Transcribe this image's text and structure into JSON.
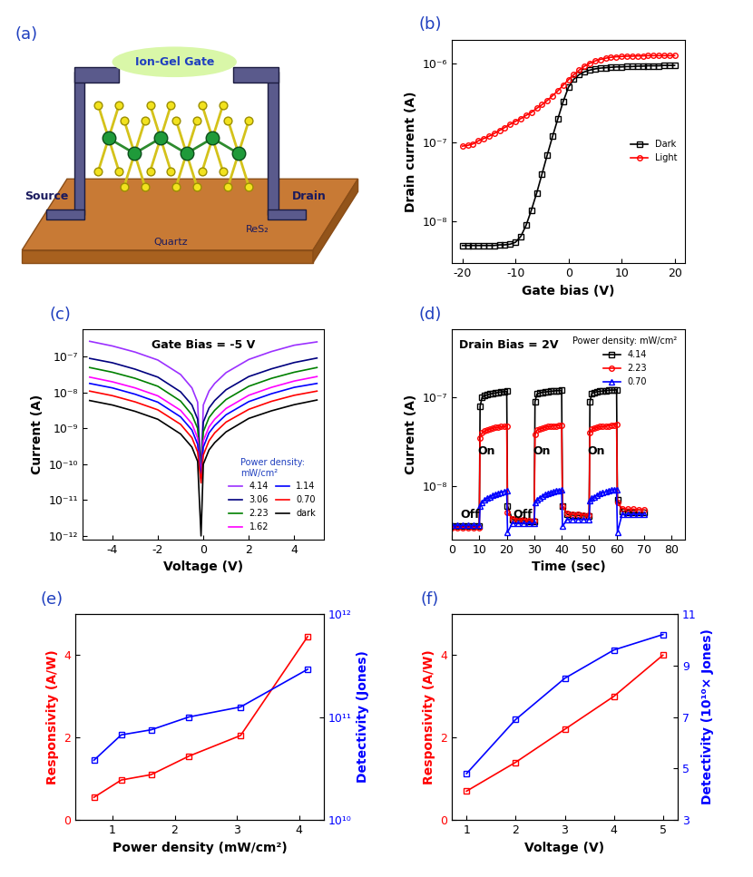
{
  "chart_data": [
    {
      "type": "diagram",
      "title": "(a)",
      "labels": {
        "gate": "Ion-Gel Gate",
        "source": "Source",
        "drain": "Drain",
        "channel": "ReS₂",
        "substrate": "Quartz"
      }
    },
    {
      "type": "line",
      "title": "(b)",
      "x_label": "Gate bias (V)",
      "y_label": "Drain current (A)",
      "log": "y",
      "xlim": [
        -22,
        22
      ],
      "xticks": [
        -20,
        -10,
        0,
        10,
        20
      ],
      "ylim": [
        3e-09,
        2e-06
      ],
      "yticks": [
        {
          "value": 1e-08,
          "label": "10⁻⁸"
        },
        {
          "value": 1e-07,
          "label": "10⁻⁷"
        },
        {
          "value": 1e-06,
          "label": "10⁻⁶"
        }
      ],
      "legend": "center right",
      "x": [
        -20,
        -19,
        -18,
        -17,
        -16,
        -15,
        -14,
        -13,
        -12,
        -11,
        -10,
        -9,
        -8,
        -7,
        -6,
        -5,
        -4,
        -3,
        -2,
        -1,
        0,
        1,
        2,
        3,
        4,
        5,
        6,
        7,
        8,
        9,
        10,
        11,
        12,
        13,
        14,
        15,
        16,
        17,
        18,
        19,
        20
      ],
      "series": [
        {
          "name": "Dark",
          "color": "#000000",
          "marker": "square",
          "line_style": "solid",
          "values": [
            5e-09,
            5e-09,
            5e-09,
            5e-09,
            5e-09,
            5e-09,
            5e-09,
            5.1e-09,
            5.1e-09,
            5.2e-09,
            5.5e-09,
            6.5e-09,
            9e-09,
            1.4e-08,
            2.3e-08,
            4e-08,
            7e-08,
            1.2e-07,
            2e-07,
            3.3e-07,
            5e-07,
            6.3e-07,
            7.2e-07,
            7.8e-07,
            8.2e-07,
            8.5e-07,
            8.7e-07,
            8.8e-07,
            8.9e-07,
            9e-07,
            9e-07,
            9.1e-07,
            9.1e-07,
            9.2e-07,
            9.2e-07,
            9.3e-07,
            9.3e-07,
            9.3e-07,
            9.4e-07,
            9.4e-07,
            9.4e-07
          ]
        },
        {
          "name": "Light",
          "color": "#ff0000",
          "marker": "circle",
          "line_style": "solid",
          "values": [
            9e-08,
            9.2e-08,
            9.6e-08,
            1.05e-07,
            1.12e-07,
            1.2e-07,
            1.3e-07,
            1.42e-07,
            1.55e-07,
            1.7e-07,
            1.85e-07,
            2e-07,
            2.2e-07,
            2.4e-07,
            2.7e-07,
            3e-07,
            3.4e-07,
            3.9e-07,
            4.5e-07,
            5.3e-07,
            6.2e-07,
            7.2e-07,
            8.2e-07,
            9.2e-07,
            1e-06,
            1.07e-06,
            1.12e-06,
            1.16e-06,
            1.19e-06,
            1.21e-06,
            1.22e-06,
            1.23e-06,
            1.23e-06,
            1.24e-06,
            1.24e-06,
            1.25e-06,
            1.25e-06,
            1.25e-06,
            1.25e-06,
            1.25e-06,
            1.25e-06
          ]
        }
      ]
    },
    {
      "type": "line",
      "title": "(c)",
      "x_label": "Voltage (V)",
      "y_label": "Current (A)",
      "annotations": [
        "Gate Bias = -5 V"
      ],
      "legend_title": "Power density:\nmW/cm²",
      "log": "y",
      "xlim": [
        -5.3,
        5.3
      ],
      "xticks": [
        -4,
        -2,
        0,
        2,
        4
      ],
      "ylim": [
        8e-13,
        6e-07
      ],
      "yticks": [
        {
          "value": 1e-12,
          "label": "10⁻¹²"
        },
        {
          "value": 1e-11,
          "label": "10⁻¹¹"
        },
        {
          "value": 1e-10,
          "label": "10⁻¹⁰"
        },
        {
          "value": 1e-09,
          "label": "10⁻⁹"
        },
        {
          "value": 1e-08,
          "label": "10⁻⁸"
        },
        {
          "value": 1e-07,
          "label": "10⁻⁷"
        }
      ],
      "legend": "lower right",
      "x": [
        -5,
        -4,
        -3,
        -2,
        -1,
        -0.5,
        -0.25,
        -0.1,
        0,
        0.25,
        0.5,
        1,
        2,
        3,
        4,
        5
      ],
      "series": [
        {
          "name": "4.14",
          "color": "#9b30ff",
          "line_style": "solid",
          "values": [
            2.7e-07,
            2e-07,
            1.35e-07,
            8.1e-08,
            3.2e-08,
            1.35e-08,
            5.4e-09,
            4e-11,
            4.5e-09,
            1.1e-08,
            1.8e-08,
            3.6e-08,
            8.4e-08,
            1.4e-07,
            2.1e-07,
            2.6e-07
          ]
        },
        {
          "name": "3.06",
          "color": "#00007f",
          "line_style": "solid",
          "values": [
            9e-08,
            6.8e-08,
            4.5e-08,
            2.7e-08,
            1.05e-08,
            4.5e-09,
            1.8e-09,
            8e-11,
            1.5e-09,
            3.7e-09,
            6e-09,
            1.2e-08,
            2.8e-08,
            4.6e-08,
            6.9e-08,
            9.2e-08
          ]
        },
        {
          "name": "2.23",
          "color": "#008000",
          "line_style": "solid",
          "values": [
            5e-08,
            3.7e-08,
            2.5e-08,
            1.5e-08,
            5.8e-09,
            2.4e-09,
            1e-09,
            6e-11,
            8e-10,
            2e-09,
            3.2e-09,
            6.4e-09,
            1.5e-08,
            2.5e-08,
            3.7e-08,
            5e-08
          ]
        },
        {
          "name": "1.62",
          "color": "#ff00ff",
          "line_style": "solid",
          "values": [
            2.7e-08,
            2e-08,
            1.35e-08,
            8.1e-09,
            3.2e-09,
            1.35e-09,
            5.4e-10,
            5e-11,
            4.5e-10,
            1.1e-09,
            1.8e-09,
            3.6e-09,
            8.4e-09,
            1.4e-08,
            2.1e-08,
            2.8e-08
          ]
        },
        {
          "name": "1.14",
          "color": "#0000ff",
          "line_style": "solid",
          "values": [
            1.8e-08,
            1.35e-08,
            9e-09,
            5.4e-09,
            2.1e-09,
            9e-10,
            3.6e-10,
            4e-11,
            3e-10,
            7.5e-10,
            1.2e-09,
            2.4e-09,
            5.6e-09,
            9.3e-09,
            1.4e-08,
            1.8e-08
          ]
        },
        {
          "name": "0.70",
          "color": "#ff0000",
          "line_style": "solid",
          "values": [
            1.1e-08,
            8.2e-09,
            5.5e-09,
            3.3e-09,
            1.3e-09,
            5.5e-10,
            2.2e-10,
            3e-11,
            1.8e-10,
            4.5e-10,
            7.5e-10,
            1.5e-09,
            3.4e-09,
            5.7e-09,
            8.4e-09,
            1.1e-08
          ]
        },
        {
          "name": "dark",
          "color": "#000000",
          "line_style": "solid",
          "values": [
            6e-09,
            4.5e-09,
            3e-09,
            1.8e-09,
            7e-10,
            3e-10,
            1.2e-10,
            1e-12,
            1e-10,
            2.5e-10,
            4e-10,
            8e-10,
            1.9e-09,
            3.1e-09,
            4.6e-09,
            6.2e-09
          ]
        }
      ]
    },
    {
      "type": "line",
      "title": "(d)",
      "x_label": "Time (sec)",
      "y_label": "Current (A)",
      "annotations": [
        "Drain Bias = 2V",
        "Off",
        "Off",
        "On",
        "On",
        "On"
      ],
      "legend_title": "Power density: mW/cm²",
      "log": "y",
      "xlim": [
        0,
        85
      ],
      "xticks": [
        0,
        10,
        20,
        30,
        40,
        50,
        60,
        70,
        80
      ],
      "ylim": [
        2.5e-09,
        6e-07
      ],
      "yticks": [
        {
          "value": 1e-08,
          "label": "10⁻⁸"
        },
        {
          "value": 1e-07,
          "label": "10⁻⁷"
        }
      ],
      "legend": "upper right",
      "x": [
        0,
        2,
        4,
        6,
        8,
        10,
        10.3,
        11,
        12,
        13,
        14,
        15,
        16,
        17,
        18,
        19,
        20,
        20.3,
        22,
        24,
        26,
        28,
        30,
        30.3,
        31,
        32,
        33,
        34,
        35,
        36,
        37,
        38,
        39,
        40,
        40.3,
        42,
        44,
        46,
        48,
        50,
        50.3,
        51,
        52,
        53,
        54,
        55,
        56,
        57,
        58,
        59,
        60,
        60.3,
        62,
        64,
        66,
        68,
        70
      ],
      "series": [
        {
          "name": "4.14",
          "color": "#000000",
          "marker": "square",
          "line_style": "solid",
          "values": [
            3.5e-09,
            3.5e-09,
            3.5e-09,
            3.5e-09,
            3.5e-09,
            3.5e-09,
            8e-08,
            1e-07,
            1.05e-07,
            1.08e-07,
            1.1e-07,
            1.12e-07,
            1.13e-07,
            1.15e-07,
            1.16e-07,
            1.17e-07,
            1.18e-07,
            6e-09,
            4.2e-09,
            4.1e-09,
            4.1e-09,
            4e-09,
            4e-09,
            9e-08,
            1.1e-07,
            1.13e-07,
            1.15e-07,
            1.16e-07,
            1.17e-07,
            1.18e-07,
            1.19e-07,
            1.2e-07,
            1.2e-07,
            1.21e-07,
            6e-09,
            4.8e-09,
            4.7e-09,
            4.7e-09,
            4.6e-09,
            4.6e-09,
            9e-08,
            1.12e-07,
            1.15e-07,
            1.17e-07,
            1.18e-07,
            1.19e-07,
            1.2e-07,
            1.21e-07,
            1.22e-07,
            1.22e-07,
            1.23e-07,
            7e-09,
            5.2e-09,
            5.1e-09,
            5e-09,
            5e-09,
            5e-09
          ]
        },
        {
          "name": "2.23",
          "color": "#ff0000",
          "marker": "circle",
          "line_style": "solid",
          "values": [
            3.4e-09,
            3.4e-09,
            3.4e-09,
            3.4e-09,
            3.4e-09,
            3.4e-09,
            3.5e-08,
            4e-08,
            4.2e-08,
            4.3e-08,
            4.4e-08,
            4.5e-08,
            4.6e-08,
            4.6e-08,
            4.7e-08,
            4.7e-08,
            4.8e-08,
            5e-09,
            4.3e-09,
            4.2e-09,
            4.2e-09,
            4.1e-09,
            4.1e-09,
            3.8e-08,
            4.3e-08,
            4.4e-08,
            4.5e-08,
            4.6e-08,
            4.7e-08,
            4.7e-08,
            4.8e-08,
            4.8e-08,
            4.9e-08,
            4.9e-08,
            6e-09,
            4.9e-09,
            4.8e-09,
            4.8e-09,
            4.7e-09,
            4.7e-09,
            4e-08,
            4.4e-08,
            4.5e-08,
            4.6e-08,
            4.7e-08,
            4.7e-08,
            4.8e-08,
            4.8e-08,
            4.9e-08,
            4.9e-08,
            5e-08,
            6.5e-09,
            5.6e-09,
            5.5e-09,
            5.5e-09,
            5.4e-09,
            5.4e-09
          ]
        },
        {
          "name": "0.70",
          "color": "#0000ff",
          "marker": "triangle",
          "line_style": "solid",
          "values": [
            3.6e-09,
            3.6e-09,
            3.6e-09,
            3.6e-09,
            3.6e-09,
            3.6e-09,
            6e-09,
            6.5e-09,
            7e-09,
            7.3e-09,
            7.6e-09,
            7.9e-09,
            8.1e-09,
            8.3e-09,
            8.5e-09,
            8.7e-09,
            8.8e-09,
            3e-09,
            3.8e-09,
            3.8e-09,
            3.8e-09,
            3.8e-09,
            3.8e-09,
            6.5e-09,
            7e-09,
            7.4e-09,
            7.7e-09,
            8e-09,
            8.2e-09,
            8.4e-09,
            8.6e-09,
            8.8e-09,
            8.9e-09,
            9e-09,
            3.5e-09,
            4.2e-09,
            4.2e-09,
            4.2e-09,
            4.2e-09,
            4.2e-09,
            6.8e-09,
            7.3e-09,
            7.6e-09,
            7.9e-09,
            8.2e-09,
            8.4e-09,
            8.6e-09,
            8.8e-09,
            9e-09,
            9.1e-09,
            9.2e-09,
            3e-09,
            4.8e-09,
            4.8e-09,
            4.8e-09,
            4.8e-09,
            4.8e-09
          ]
        }
      ]
    },
    {
      "type": "line",
      "title": "(e)",
      "x_label": "Power density (mW/cm²)",
      "y_label": "Responsivity (A/W)",
      "y2_label": "Detectivity (Jones)",
      "log": "y2",
      "xlim": [
        0.4,
        4.4
      ],
      "xticks": [
        1,
        2,
        3,
        4
      ],
      "ylim": [
        0,
        5
      ],
      "yticks": [
        0,
        2,
        4
      ],
      "y2lim": [
        10000000000.0,
        1000000000000.0
      ],
      "y2ticks": [
        {
          "value": 10000000000.0,
          "label": "10¹⁰"
        },
        {
          "value": 100000000000.0,
          "label": "10¹¹"
        },
        {
          "value": 1000000000000.0,
          "label": "10¹²"
        }
      ],
      "x": [
        0.7,
        1.14,
        1.62,
        2.23,
        3.06,
        4.14
      ],
      "series": [
        {
          "color": "#ff0000",
          "marker": "square",
          "line_style": "solid",
          "values": [
            0.55,
            0.97,
            1.1,
            1.55,
            2.05,
            4.45
          ]
        },
        {
          "color": "#0000ff",
          "marker": "square",
          "line_style": "solid",
          "axis": "y2",
          "values": [
            38000000000.0,
            67000000000.0,
            75000000000.0,
            100000000000.0,
            125000000000.0,
            290000000000.0
          ]
        }
      ]
    },
    {
      "type": "line",
      "title": "(f)",
      "x_label": "Voltage (V)",
      "y_label": "Responsivity (A/W)",
      "y2_label": "Detectivity (10¹⁰× Jones)",
      "xlim": [
        0.7,
        5.3
      ],
      "xticks": [
        1,
        2,
        3,
        4,
        5
      ],
      "ylim": [
        0,
        5
      ],
      "yticks": [
        0,
        2,
        4
      ],
      "y2lim": [
        3,
        11
      ],
      "y2ticks": [
        3,
        5,
        7,
        9,
        11
      ],
      "x": [
        1,
        2,
        3,
        4,
        5
      ],
      "series": [
        {
          "color": "#ff0000",
          "marker": "square",
          "line_style": "solid",
          "values": [
            0.7,
            1.4,
            2.2,
            3.0,
            4.0
          ]
        },
        {
          "color": "#0000ff",
          "marker": "square",
          "line_style": "solid",
          "axis": "y2",
          "values": [
            4.8,
            6.9,
            8.5,
            9.6,
            10.2
          ]
        }
      ]
    }
  ]
}
